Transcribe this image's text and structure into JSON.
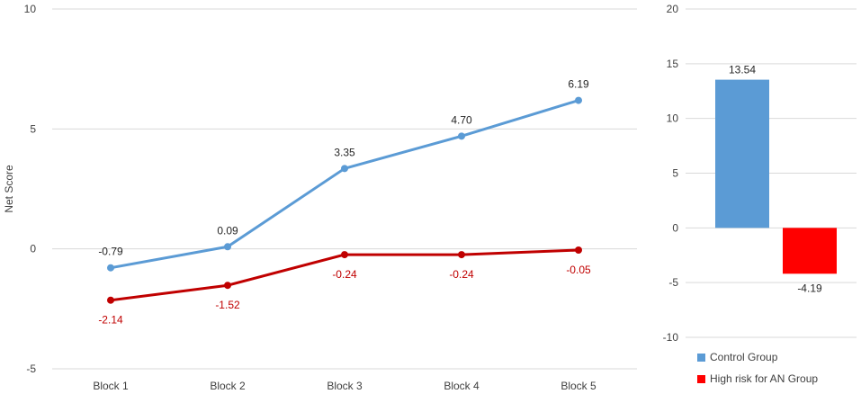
{
  "chart_data": [
    {
      "type": "line",
      "title": "",
      "xlabel": "",
      "ylabel": "Net Score",
      "ylim": [
        -5,
        10
      ],
      "yticks": [
        -5,
        0,
        5,
        10
      ],
      "grid": true,
      "categories": [
        "Block 1",
        "Block 2",
        "Block 3",
        "Block 4",
        "Block 5"
      ],
      "series": [
        {
          "color": "#5B9BD5",
          "values": [
            -0.79,
            0.09,
            3.35,
            4.7,
            6.19
          ],
          "labels": [
            "-0.79",
            "0.09",
            "3.35",
            "4.70",
            "6.19"
          ]
        },
        {
          "color": "#C00000",
          "values": [
            -2.14,
            -1.52,
            -0.24,
            -0.24,
            -0.05
          ],
          "labels": [
            "-2.14",
            "-1.52",
            "-0.24",
            "-0.24",
            "-0.05"
          ]
        }
      ]
    },
    {
      "type": "bar",
      "title": "",
      "xlabel": "",
      "ylabel": "",
      "ylim": [
        -10,
        20
      ],
      "yticks": [
        -10,
        -5,
        0,
        5,
        10,
        15,
        20
      ],
      "grid": true,
      "legend": "bottom",
      "series": [
        {
          "name": "Control Group",
          "color": "#5B9BD5",
          "values": [
            13.54
          ],
          "labels": [
            "13.54"
          ]
        },
        {
          "name": "High risk for AN Group",
          "color": "#FF0000",
          "values": [
            -4.19
          ],
          "labels": [
            "-4.19"
          ]
        }
      ]
    }
  ]
}
